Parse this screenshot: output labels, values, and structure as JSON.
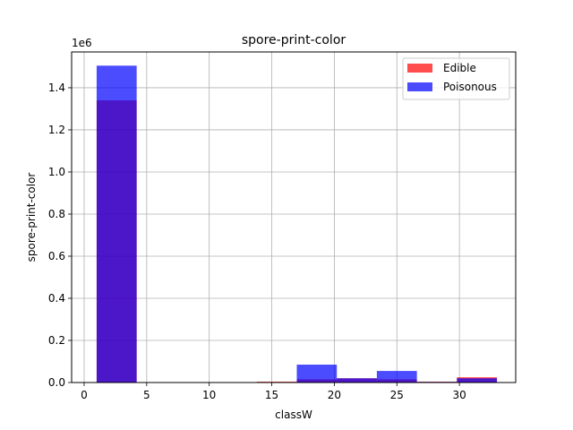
{
  "chart_data": {
    "type": "bar",
    "subtype": "overlaid-histogram",
    "title": "spore-print-color",
    "xlabel": "classW",
    "ylabel": "spore-print-color",
    "y_offset_label": "1e6",
    "xlim": [
      -1,
      34.5
    ],
    "ylim": [
      0,
      1.57
    ],
    "x_ticks": [
      0,
      5,
      10,
      15,
      20,
      25,
      30
    ],
    "y_ticks": [
      0.0,
      0.2,
      0.4,
      0.6,
      0.8,
      1.0,
      1.2,
      1.4
    ],
    "grid": true,
    "legend_position": "top-right",
    "bin_edges": [
      1,
      4.2,
      7.4,
      10.6,
      13.8,
      17,
      20.2,
      23.4,
      26.6,
      29.8,
      33
    ],
    "series": [
      {
        "name": "Edible",
        "color": "#ff0000",
        "values": [
          1.34,
          0,
          0,
          0,
          0.004,
          0.015,
          0.02,
          0.015,
          0.004,
          0.025
        ]
      },
      {
        "name": "Poisonous",
        "color": "#0000ff",
        "values": [
          1.505,
          0,
          0,
          0,
          0,
          0.085,
          0.02,
          0.055,
          0.003,
          0.02
        ]
      }
    ]
  }
}
